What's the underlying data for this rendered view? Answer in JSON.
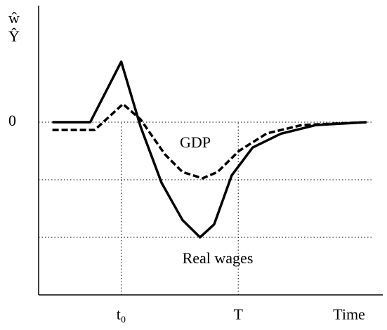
{
  "chart_data": {
    "type": "line",
    "ylabel": [
      "ŵ",
      "Ŷ"
    ],
    "xlabel": "Time",
    "xlim": [
      0,
      10
    ],
    "ylim": [
      -6,
      4
    ],
    "xticks": [
      {
        "value": 2.4,
        "label": "t₀"
      },
      {
        "value": 5.8,
        "label": "T"
      }
    ],
    "yticks": [
      0
    ],
    "hlines": [
      -2,
      -4
    ],
    "grid": true,
    "series": [
      {
        "name": "Real wages",
        "color": "#000000",
        "style": "solid",
        "x": [
          0.4,
          1.5,
          2.4,
          2.96,
          3.57,
          4.18,
          4.69,
          5.1,
          5.61,
          6.22,
          7.04,
          8.06,
          9.53
        ],
        "values": [
          0,
          0,
          2.1,
          -0.15,
          -2.1,
          -3.4,
          -4,
          -3.55,
          -1.85,
          -0.88,
          -0.4,
          -0.1,
          0
        ]
      },
      {
        "name": "GDP",
        "color": "#000000",
        "style": "dashed",
        "x": [
          0.4,
          1.63,
          2.45,
          2.96,
          3.67,
          4.18,
          4.76,
          5.2,
          5.82,
          6.63,
          7.65,
          9.53
        ],
        "values": [
          -0.27,
          -0.27,
          0.63,
          0.1,
          -1.12,
          -1.73,
          -1.95,
          -1.73,
          -1.0,
          -0.39,
          -0.1,
          0
        ]
      }
    ]
  }
}
